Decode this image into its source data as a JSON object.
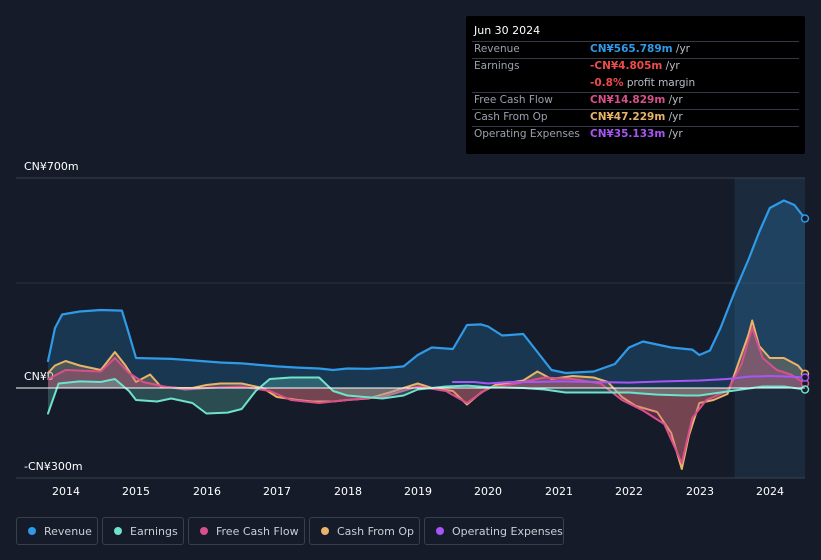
{
  "tooltip": {
    "date": "Jun 30 2024",
    "rows": [
      {
        "label": "Revenue",
        "value": "CN¥565.789m",
        "unit": " /yr",
        "color": "#2f9ae8"
      },
      {
        "label": "Earnings",
        "value": "-CN¥4.805m",
        "unit": " /yr",
        "color": "#ee4b4b"
      },
      {
        "label": "",
        "value": "-0.8%",
        "unit": " profit margin",
        "color": "#ee4b4b"
      },
      {
        "label": "Free Cash Flow",
        "value": "CN¥14.829m",
        "unit": " /yr",
        "color": "#d84f8c"
      },
      {
        "label": "Cash From Op",
        "value": "CN¥47.229m",
        "unit": " /yr",
        "color": "#e9b469"
      },
      {
        "label": "Operating Expenses",
        "value": "CN¥35.133m",
        "unit": " /yr",
        "color": "#a855f7"
      }
    ]
  },
  "chart_data": {
    "type": "area",
    "title": "",
    "xlabel": "",
    "ylabel": "",
    "y_tick_labels": [
      "CN¥700m",
      "CN¥0",
      "-CN¥300m"
    ],
    "ylim": [
      -300,
      700
    ],
    "xlim": [
      2013.75,
      2024.5
    ],
    "x_ticks": [
      2014,
      2015,
      2016,
      2017,
      2018,
      2019,
      2020,
      2021,
      2022,
      2023,
      2024
    ],
    "forecast_start": 2023.5,
    "series": [
      {
        "name": "Revenue",
        "color": "#2f9ae8",
        "points": [
          [
            2013.75,
            90
          ],
          [
            2013.85,
            200
          ],
          [
            2013.95,
            245
          ],
          [
            2014.2,
            255
          ],
          [
            2014.5,
            260
          ],
          [
            2014.8,
            258
          ],
          [
            2014.9,
            180
          ],
          [
            2015.0,
            100
          ],
          [
            2015.5,
            97
          ],
          [
            2015.8,
            92
          ],
          [
            2016.2,
            85
          ],
          [
            2016.5,
            82
          ],
          [
            2016.7,
            78
          ],
          [
            2017.0,
            72
          ],
          [
            2017.3,
            68
          ],
          [
            2017.6,
            65
          ],
          [
            2017.8,
            60
          ],
          [
            2018.0,
            65
          ],
          [
            2018.3,
            64
          ],
          [
            2018.6,
            68
          ],
          [
            2018.8,
            72
          ],
          [
            2019.0,
            110
          ],
          [
            2019.2,
            135
          ],
          [
            2019.5,
            130
          ],
          [
            2019.7,
            210
          ],
          [
            2019.9,
            212
          ],
          [
            2020.0,
            205
          ],
          [
            2020.2,
            175
          ],
          [
            2020.5,
            180
          ],
          [
            2020.7,
            120
          ],
          [
            2020.9,
            60
          ],
          [
            2021.1,
            50
          ],
          [
            2021.5,
            55
          ],
          [
            2021.8,
            80
          ],
          [
            2022.0,
            135
          ],
          [
            2022.2,
            155
          ],
          [
            2022.4,
            145
          ],
          [
            2022.6,
            135
          ],
          [
            2022.9,
            128
          ],
          [
            2023.0,
            110
          ],
          [
            2023.15,
            125
          ],
          [
            2023.3,
            200
          ],
          [
            2023.5,
            320
          ],
          [
            2023.7,
            430
          ],
          [
            2023.85,
            520
          ],
          [
            2024.0,
            600
          ],
          [
            2024.2,
            625
          ],
          [
            2024.35,
            610
          ],
          [
            2024.5,
            565
          ]
        ]
      },
      {
        "name": "Cash From Op",
        "color": "#e9b469",
        "points": [
          [
            2013.75,
            50
          ],
          [
            2013.85,
            75
          ],
          [
            2014.0,
            90
          ],
          [
            2014.2,
            75
          ],
          [
            2014.5,
            60
          ],
          [
            2014.7,
            120
          ],
          [
            2014.85,
            75
          ],
          [
            2015.0,
            20
          ],
          [
            2015.2,
            45
          ],
          [
            2015.35,
            5
          ],
          [
            2015.6,
            0
          ],
          [
            2015.8,
            0
          ],
          [
            2016.0,
            10
          ],
          [
            2016.2,
            15
          ],
          [
            2016.5,
            15
          ],
          [
            2016.8,
            0
          ],
          [
            2017.0,
            -30
          ],
          [
            2017.3,
            -40
          ],
          [
            2017.5,
            -45
          ],
          [
            2017.8,
            -45
          ],
          [
            2018.0,
            -40
          ],
          [
            2018.3,
            -35
          ],
          [
            2018.6,
            -15
          ],
          [
            2018.8,
            0
          ],
          [
            2019.0,
            15
          ],
          [
            2019.2,
            0
          ],
          [
            2019.5,
            -10
          ],
          [
            2019.7,
            -55
          ],
          [
            2019.9,
            -15
          ],
          [
            2020.1,
            10
          ],
          [
            2020.5,
            25
          ],
          [
            2020.7,
            55
          ],
          [
            2020.9,
            30
          ],
          [
            2021.2,
            40
          ],
          [
            2021.5,
            35
          ],
          [
            2021.7,
            20
          ],
          [
            2021.9,
            -30
          ],
          [
            2022.1,
            -60
          ],
          [
            2022.4,
            -80
          ],
          [
            2022.6,
            -150
          ],
          [
            2022.75,
            -270
          ],
          [
            2022.85,
            -160
          ],
          [
            2023.0,
            -50
          ],
          [
            2023.2,
            -40
          ],
          [
            2023.4,
            -20
          ],
          [
            2023.55,
            80
          ],
          [
            2023.7,
            180
          ],
          [
            2023.75,
            225
          ],
          [
            2023.85,
            140
          ],
          [
            2024.0,
            100
          ],
          [
            2024.2,
            100
          ],
          [
            2024.4,
            75
          ],
          [
            2024.5,
            47
          ]
        ]
      },
      {
        "name": "Earnings",
        "color": "#6ee2cc",
        "points": [
          [
            2013.75,
            -85
          ],
          [
            2013.9,
            15
          ],
          [
            2014.2,
            22
          ],
          [
            2014.5,
            20
          ],
          [
            2014.7,
            30
          ],
          [
            2014.9,
            -10
          ],
          [
            2015.0,
            -40
          ],
          [
            2015.3,
            -45
          ],
          [
            2015.5,
            -35
          ],
          [
            2015.8,
            -50
          ],
          [
            2016.0,
            -85
          ],
          [
            2016.3,
            -82
          ],
          [
            2016.5,
            -70
          ],
          [
            2016.7,
            -10
          ],
          [
            2016.9,
            30
          ],
          [
            2017.2,
            35
          ],
          [
            2017.6,
            35
          ],
          [
            2017.8,
            -10
          ],
          [
            2018.0,
            -25
          ],
          [
            2018.5,
            -35
          ],
          [
            2018.8,
            -25
          ],
          [
            2019.0,
            -5
          ],
          [
            2019.4,
            5
          ],
          [
            2019.7,
            8
          ],
          [
            2020.0,
            3
          ],
          [
            2020.5,
            0
          ],
          [
            2020.8,
            -5
          ],
          [
            2021.1,
            -15
          ],
          [
            2021.5,
            -15
          ],
          [
            2022.0,
            -15
          ],
          [
            2022.4,
            -22
          ],
          [
            2022.8,
            -25
          ],
          [
            2023.0,
            -25
          ],
          [
            2023.3,
            -15
          ],
          [
            2023.6,
            -5
          ],
          [
            2023.9,
            5
          ],
          [
            2024.2,
            5
          ],
          [
            2024.5,
            -5
          ]
        ]
      },
      {
        "name": "Free Cash Flow",
        "color": "#d84f8c",
        "points": [
          [
            2013.75,
            30
          ],
          [
            2014.0,
            60
          ],
          [
            2014.5,
            55
          ],
          [
            2014.7,
            100
          ],
          [
            2014.9,
            50
          ],
          [
            2015.1,
            20
          ],
          [
            2015.4,
            5
          ],
          [
            2015.7,
            -5
          ],
          [
            2016.0,
            0
          ],
          [
            2016.5,
            5
          ],
          [
            2016.9,
            -10
          ],
          [
            2017.2,
            -40
          ],
          [
            2017.6,
            -50
          ],
          [
            2018.0,
            -40
          ],
          [
            2018.5,
            -30
          ],
          [
            2019.0,
            5
          ],
          [
            2019.4,
            -10
          ],
          [
            2019.7,
            -50
          ],
          [
            2020.0,
            0
          ],
          [
            2020.4,
            15
          ],
          [
            2020.8,
            35
          ],
          [
            2021.2,
            30
          ],
          [
            2021.6,
            15
          ],
          [
            2021.9,
            -40
          ],
          [
            2022.2,
            -75
          ],
          [
            2022.5,
            -120
          ],
          [
            2022.75,
            -250
          ],
          [
            2022.9,
            -100
          ],
          [
            2023.1,
            -40
          ],
          [
            2023.4,
            -10
          ],
          [
            2023.6,
            80
          ],
          [
            2023.75,
            200
          ],
          [
            2023.9,
            100
          ],
          [
            2024.1,
            60
          ],
          [
            2024.3,
            45
          ],
          [
            2024.5,
            15
          ]
        ]
      },
      {
        "name": "Operating Expenses",
        "color": "#a855f7",
        "points": [
          [
            2019.5,
            20
          ],
          [
            2019.8,
            20
          ],
          [
            2020.0,
            15
          ],
          [
            2020.3,
            20
          ],
          [
            2020.7,
            20
          ],
          [
            2021.0,
            22
          ],
          [
            2021.5,
            20
          ],
          [
            2022.0,
            18
          ],
          [
            2022.5,
            22
          ],
          [
            2023.0,
            25
          ],
          [
            2023.4,
            30
          ],
          [
            2023.7,
            38
          ],
          [
            2024.0,
            40
          ],
          [
            2024.3,
            38
          ],
          [
            2024.5,
            35
          ]
        ]
      }
    ],
    "legend": [
      "Revenue",
      "Earnings",
      "Free Cash Flow",
      "Cash From Op",
      "Operating Expenses"
    ]
  }
}
